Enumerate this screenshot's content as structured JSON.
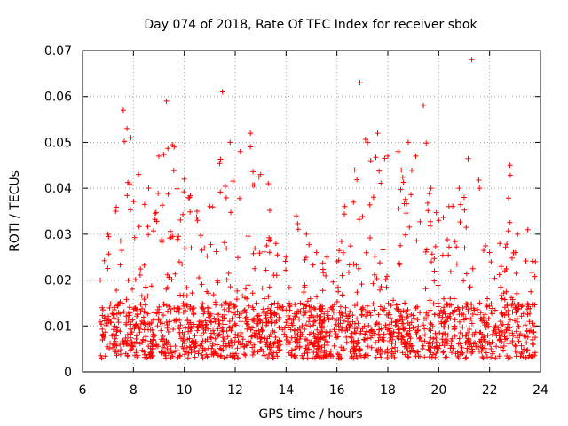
{
  "chart_data": {
    "type": "scatter",
    "title": "Day 074 of 2018, Rate Of TEC Index for receiver sbok",
    "xlabel": "GPS time / hours",
    "ylabel": "ROTI / TECUs",
    "xlim": [
      6,
      24
    ],
    "ylim": [
      0,
      0.07
    ],
    "xticks": [
      "6",
      "8",
      "10",
      "12",
      "14",
      "16",
      "18",
      "20",
      "22",
      "24"
    ],
    "yticks": [
      "0",
      "0.01",
      "0.02",
      "0.03",
      "0.04",
      "0.05",
      "0.06",
      "0.07"
    ],
    "grid": true,
    "marker": "+",
    "color": "#ff0000",
    "series": [
      {
        "name": "ROTI",
        "x_range": [
          6.7,
          23.8
        ],
        "baseline_band": [
          0.003,
          0.015
        ],
        "envelope": [
          [
            6.7,
            0.02
          ],
          [
            7.0,
            0.03
          ],
          [
            7.3,
            0.035
          ],
          [
            7.6,
            0.057
          ],
          [
            7.9,
            0.051
          ],
          [
            8.2,
            0.043
          ],
          [
            8.6,
            0.04
          ],
          [
            9.0,
            0.047
          ],
          [
            9.3,
            0.059
          ],
          [
            9.6,
            0.049
          ],
          [
            10.0,
            0.042
          ],
          [
            10.5,
            0.035
          ],
          [
            11.0,
            0.036
          ],
          [
            11.5,
            0.061
          ],
          [
            11.8,
            0.05
          ],
          [
            12.2,
            0.048
          ],
          [
            12.6,
            0.052
          ],
          [
            13.0,
            0.043
          ],
          [
            13.3,
            0.041
          ],
          [
            13.6,
            0.028
          ],
          [
            14.0,
            0.025
          ],
          [
            14.4,
            0.034
          ],
          [
            14.8,
            0.03
          ],
          [
            15.2,
            0.026
          ],
          [
            15.6,
            0.025
          ],
          [
            16.0,
            0.024
          ],
          [
            16.3,
            0.036
          ],
          [
            16.7,
            0.044
          ],
          [
            16.9,
            0.063
          ],
          [
            17.2,
            0.05
          ],
          [
            17.6,
            0.052
          ],
          [
            18.0,
            0.047
          ],
          [
            18.4,
            0.048
          ],
          [
            18.8,
            0.05
          ],
          [
            19.1,
            0.047
          ],
          [
            19.4,
            0.058
          ],
          [
            19.7,
            0.04
          ],
          [
            20.0,
            0.033
          ],
          [
            20.4,
            0.036
          ],
          [
            20.8,
            0.04
          ],
          [
            21.0,
            0.038
          ],
          [
            21.3,
            0.068
          ],
          [
            21.6,
            0.04
          ],
          [
            22.0,
            0.026
          ],
          [
            22.4,
            0.028
          ],
          [
            22.8,
            0.045
          ],
          [
            23.1,
            0.03
          ],
          [
            23.5,
            0.031
          ],
          [
            23.8,
            0.024
          ]
        ]
      }
    ]
  }
}
